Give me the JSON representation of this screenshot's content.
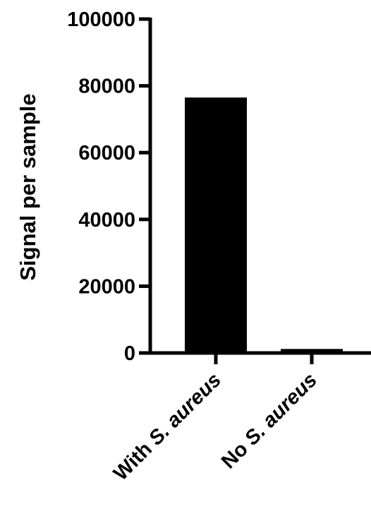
{
  "chart_data": {
    "type": "bar",
    "categories": [
      {
        "prefix": "With ",
        "species": "S. aureus"
      },
      {
        "prefix": "No ",
        "species": "S. aureus"
      }
    ],
    "values": [
      76500,
      1200
    ],
    "title": "",
    "xlabel": "",
    "ylabel": "Signal per sample",
    "ylim": [
      0,
      100000
    ],
    "yticks": [
      0,
      20000,
      40000,
      60000,
      80000,
      100000
    ],
    "ytick_labels": [
      "0",
      "20000",
      "40000",
      "60000",
      "80000",
      "100000"
    ],
    "grid": false,
    "legend": "none",
    "bar_color": "#000000",
    "axis_color": "#000000"
  }
}
